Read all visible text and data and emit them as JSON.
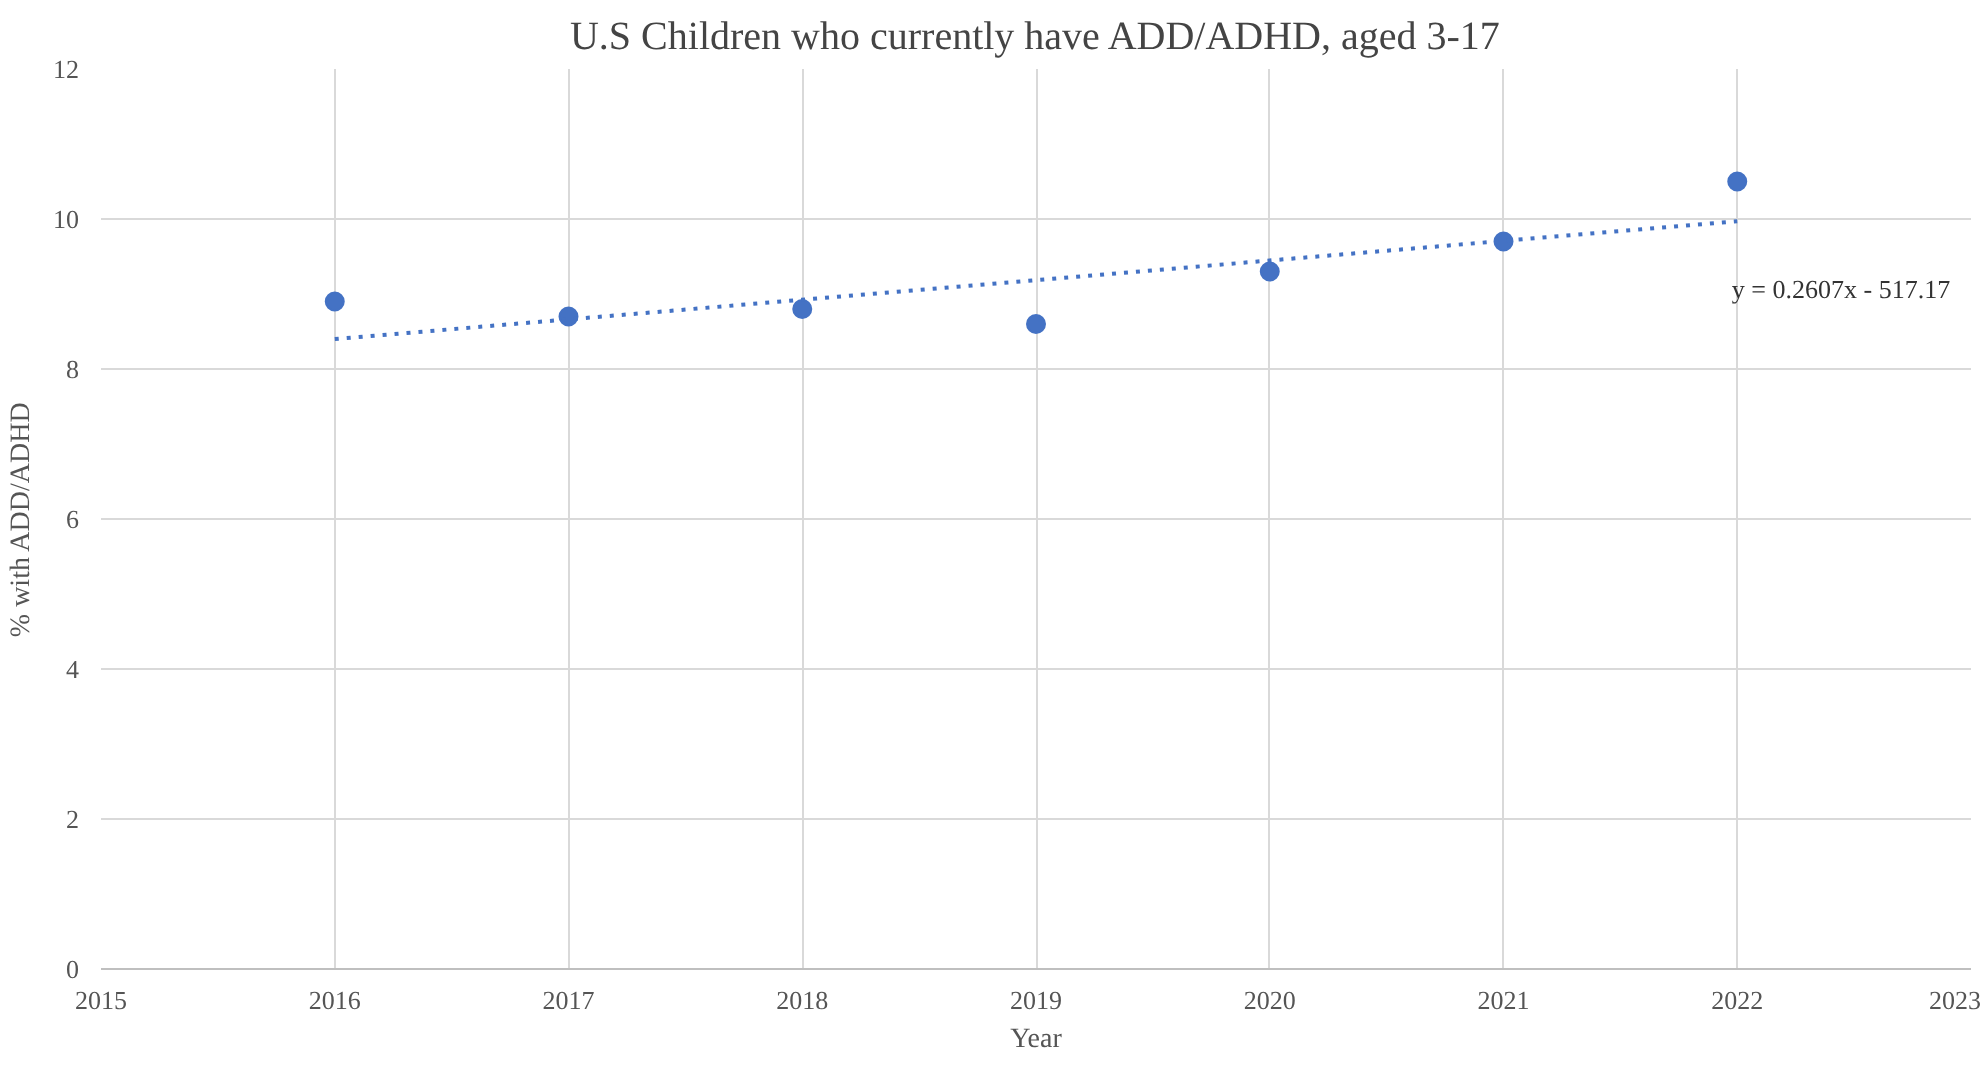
{
  "chart_data": {
    "type": "scatter",
    "title": "U.S Children who currently have ADD/ADHD, aged 3-17",
    "xlabel": "Year",
    "ylabel": "% with ADD/ADHD",
    "x": [
      2016,
      2017,
      2018,
      2019,
      2020,
      2021,
      2022
    ],
    "series": [
      {
        "color": "#4472c4",
        "values": [
          8.9,
          8.7,
          8.8,
          8.6,
          9.3,
          9.7,
          10.5
        ],
        "marker": "circle"
      },
      {
        "type": "line",
        "color": "#4472c4",
        "x": [
          2016,
          2022
        ],
        "values": [
          8.4,
          9.97
        ],
        "line_style": "dotted",
        "marker": "none"
      }
    ],
    "xlim": [
      2015,
      2023
    ],
    "xticks": [
      2015,
      2016,
      2017,
      2018,
      2019,
      2020,
      2021,
      2022,
      2023
    ],
    "ylim": [
      0,
      12
    ],
    "yticks": [
      0,
      2,
      4,
      6,
      8,
      10,
      12
    ],
    "grid": true,
    "annotations": [
      "y = 0.2607x - 517.17"
    ]
  }
}
